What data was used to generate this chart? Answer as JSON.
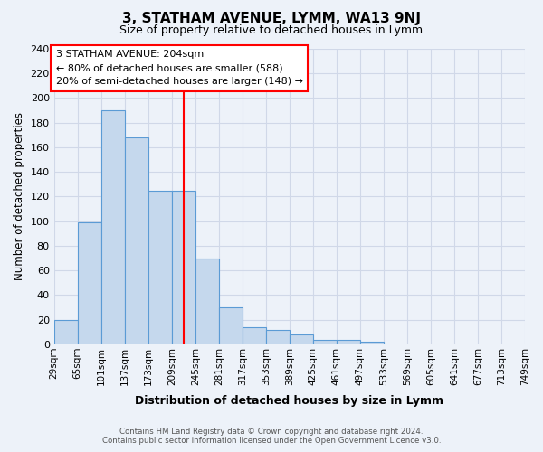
{
  "title": "3, STATHAM AVENUE, LYMM, WA13 9NJ",
  "subtitle": "Size of property relative to detached houses in Lymm",
  "xlabel": "Distribution of detached houses by size in Lymm",
  "ylabel": "Number of detached properties",
  "bin_labels": [
    "29sqm",
    "65sqm",
    "101sqm",
    "137sqm",
    "173sqm",
    "209sqm",
    "245sqm",
    "281sqm",
    "317sqm",
    "353sqm",
    "389sqm",
    "425sqm",
    "461sqm",
    "497sqm",
    "533sqm",
    "569sqm",
    "605sqm",
    "641sqm",
    "677sqm",
    "713sqm",
    "749sqm"
  ],
  "bar_heights": [
    20,
    99,
    190,
    168,
    125,
    125,
    70,
    30,
    14,
    12,
    8,
    4,
    4,
    2,
    0,
    0,
    0,
    0,
    0,
    0
  ],
  "bar_color": "#c5d8ed",
  "bar_edge_color": "#5b9bd5",
  "vline_color": "red",
  "vline_position": 5.5,
  "ylim": [
    0,
    240
  ],
  "yticks": [
    0,
    20,
    40,
    60,
    80,
    100,
    120,
    140,
    160,
    180,
    200,
    220,
    240
  ],
  "annotation_title": "3 STATHAM AVENUE: 204sqm",
  "annotation_line1": "← 80% of detached houses are smaller (588)",
  "annotation_line2": "20% of semi-detached houses are larger (148) →",
  "footer_line1": "Contains HM Land Registry data © Crown copyright and database right 2024.",
  "footer_line2": "Contains public sector information licensed under the Open Government Licence v3.0.",
  "bg_color": "#edf2f9",
  "grid_color": "#d0d8e8"
}
